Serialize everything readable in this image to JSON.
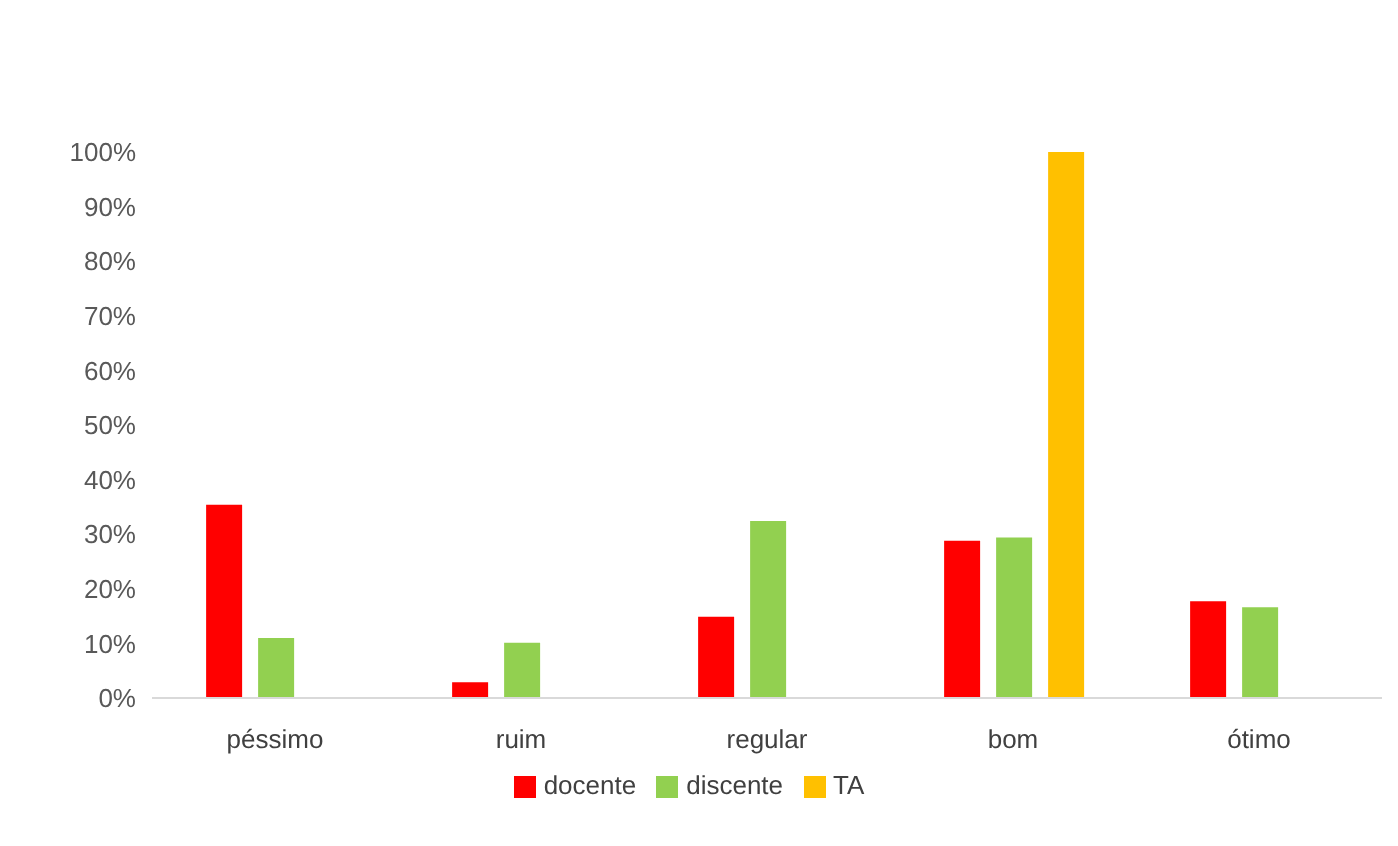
{
  "chart_data": {
    "type": "bar",
    "categories": [
      "péssimo",
      "ruim",
      "regular",
      "bom",
      "ótimo"
    ],
    "series": [
      {
        "name": "docente",
        "color": "#ff0000",
        "values": [
          35.4,
          2.9,
          14.9,
          28.8,
          17.7
        ]
      },
      {
        "name": "discente",
        "color": "#92d050",
        "values": [
          11.0,
          10.1,
          32.4,
          29.4,
          16.6
        ]
      },
      {
        "name": "TA",
        "color": "#ffc000",
        "values": [
          null,
          null,
          null,
          100,
          null
        ]
      }
    ],
    "ylim": [
      0,
      100
    ],
    "yticks": [
      {
        "value": 0,
        "label": "0%"
      },
      {
        "value": 10,
        "label": "10%"
      },
      {
        "value": 20,
        "label": "20%"
      },
      {
        "value": 30,
        "label": "30%"
      },
      {
        "value": 40,
        "label": "40%"
      },
      {
        "value": 50,
        "label": "50%"
      },
      {
        "value": 60,
        "label": "60%"
      },
      {
        "value": 70,
        "label": "70%"
      },
      {
        "value": 80,
        "label": "80%"
      },
      {
        "value": 90,
        "label": "90%"
      },
      {
        "value": 100,
        "label": "100%"
      }
    ],
    "grid": false,
    "legend": "bottom"
  }
}
